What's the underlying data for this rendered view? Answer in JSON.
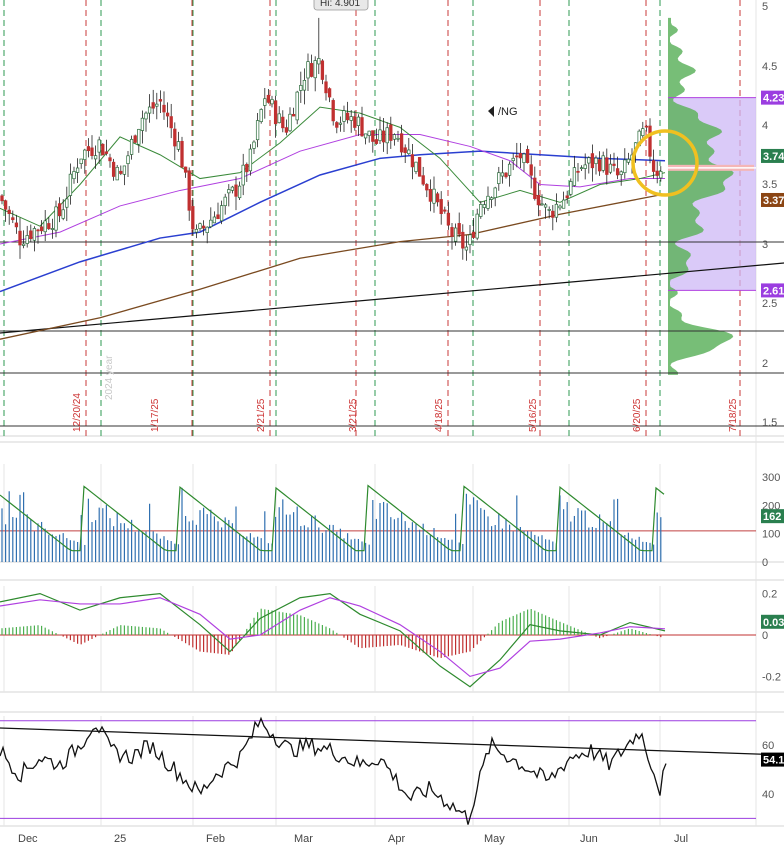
{
  "chart_data": [
    {
      "type": "candlestick",
      "symbol_label": "/NG",
      "high_callout": "Hi: 4.901",
      "y_ticks": [
        "5",
        "4.5",
        "4",
        "3.5",
        "3",
        "2.5",
        "2",
        "1.5"
      ],
      "ylim": [
        1.4,
        5.05
      ],
      "price_tags": [
        {
          "label": "4.23",
          "value": 4.23,
          "color": "#9b3de0"
        },
        {
          "label": "3.74",
          "value": 3.74,
          "color": "#2a7f4f"
        },
        {
          "label": "3.37",
          "value": 3.37,
          "color": "#8b4513"
        },
        {
          "label": "2.61",
          "value": 2.61,
          "color": "#9b3de0"
        }
      ],
      "expiry_dates": [
        "12/20/24",
        "1/17/25",
        "2/21/25",
        "3/21/25",
        "4/18/25",
        "5/16/25",
        "6/20/25",
        "7/18/25"
      ],
      "faded_label": "2024 year",
      "horizontal_levels": [
        3.0,
        2.24,
        1.88,
        1.48
      ],
      "annotations": [
        "circle highlight near 6/20/25 around 3.5-3.8"
      ]
    },
    {
      "type": "bar+line",
      "y_ticks": [
        "300",
        "200",
        "100",
        "0"
      ],
      "ylim": [
        0,
        380
      ],
      "value_tag": {
        "label": "162",
        "value": 162,
        "color": "#2a7f4f"
      },
      "reference_level": 110
    },
    {
      "type": "histogram+line",
      "y_ticks": [
        "0.2",
        "0",
        "-0.2"
      ],
      "ylim": [
        -0.27,
        0.25
      ],
      "value_tag": {
        "label": "0.03",
        "value": 0.03,
        "color": "#2a7f4f"
      }
    },
    {
      "type": "line",
      "y_ticks": [
        "60",
        "40"
      ],
      "ylim": [
        28,
        78
      ],
      "value_tag": {
        "label": "54.1",
        "value": 54.1,
        "color": "#000000"
      },
      "levels": [
        70,
        30
      ]
    }
  ],
  "x_axis": {
    "months": [
      "Dec",
      "25",
      "Feb",
      "Mar",
      "Apr",
      "May",
      "Jun",
      "Jul"
    ]
  },
  "colors": {
    "up_candle": "#3a9a5a",
    "down_candle": "#c03030",
    "volume_profile": "#5fb35f",
    "value_area": "#cdb8f5",
    "ma_blue": "#2a3fd0",
    "ma_purple": "#b040e0",
    "ma_green": "#3a8a3a",
    "ma_brown": "#7a4a20",
    "red_dashed": "#c83838",
    "green_dashed": "#2e9a50",
    "highlight_circle": "#f0c020"
  }
}
